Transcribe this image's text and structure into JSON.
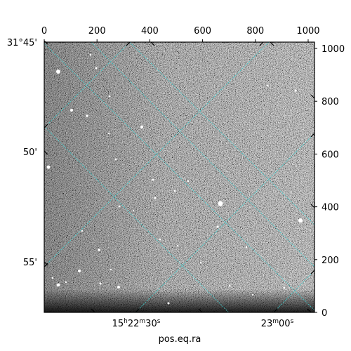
{
  "figure": {
    "xlabel": "pos.eq.ra",
    "ylabel": "",
    "title": ""
  },
  "pixel_axes": {
    "top_ticks": [
      "0",
      "200",
      "400",
      "600",
      "800",
      "1000"
    ],
    "right_ticks": [
      "0",
      "200",
      "400",
      "600",
      "800",
      "1000"
    ]
  },
  "world_axes": {
    "dec_ticks": [
      "31°45'",
      "50'",
      "55'"
    ],
    "ra_ticks": [
      {
        "h": "15",
        "m": "22",
        "s": "30"
      },
      {
        "h": "",
        "m": "23",
        "s": "00"
      }
    ]
  },
  "colors": {
    "grid": "#40d0d0",
    "frame": "#000000",
    "background": "#ffffff"
  }
}
